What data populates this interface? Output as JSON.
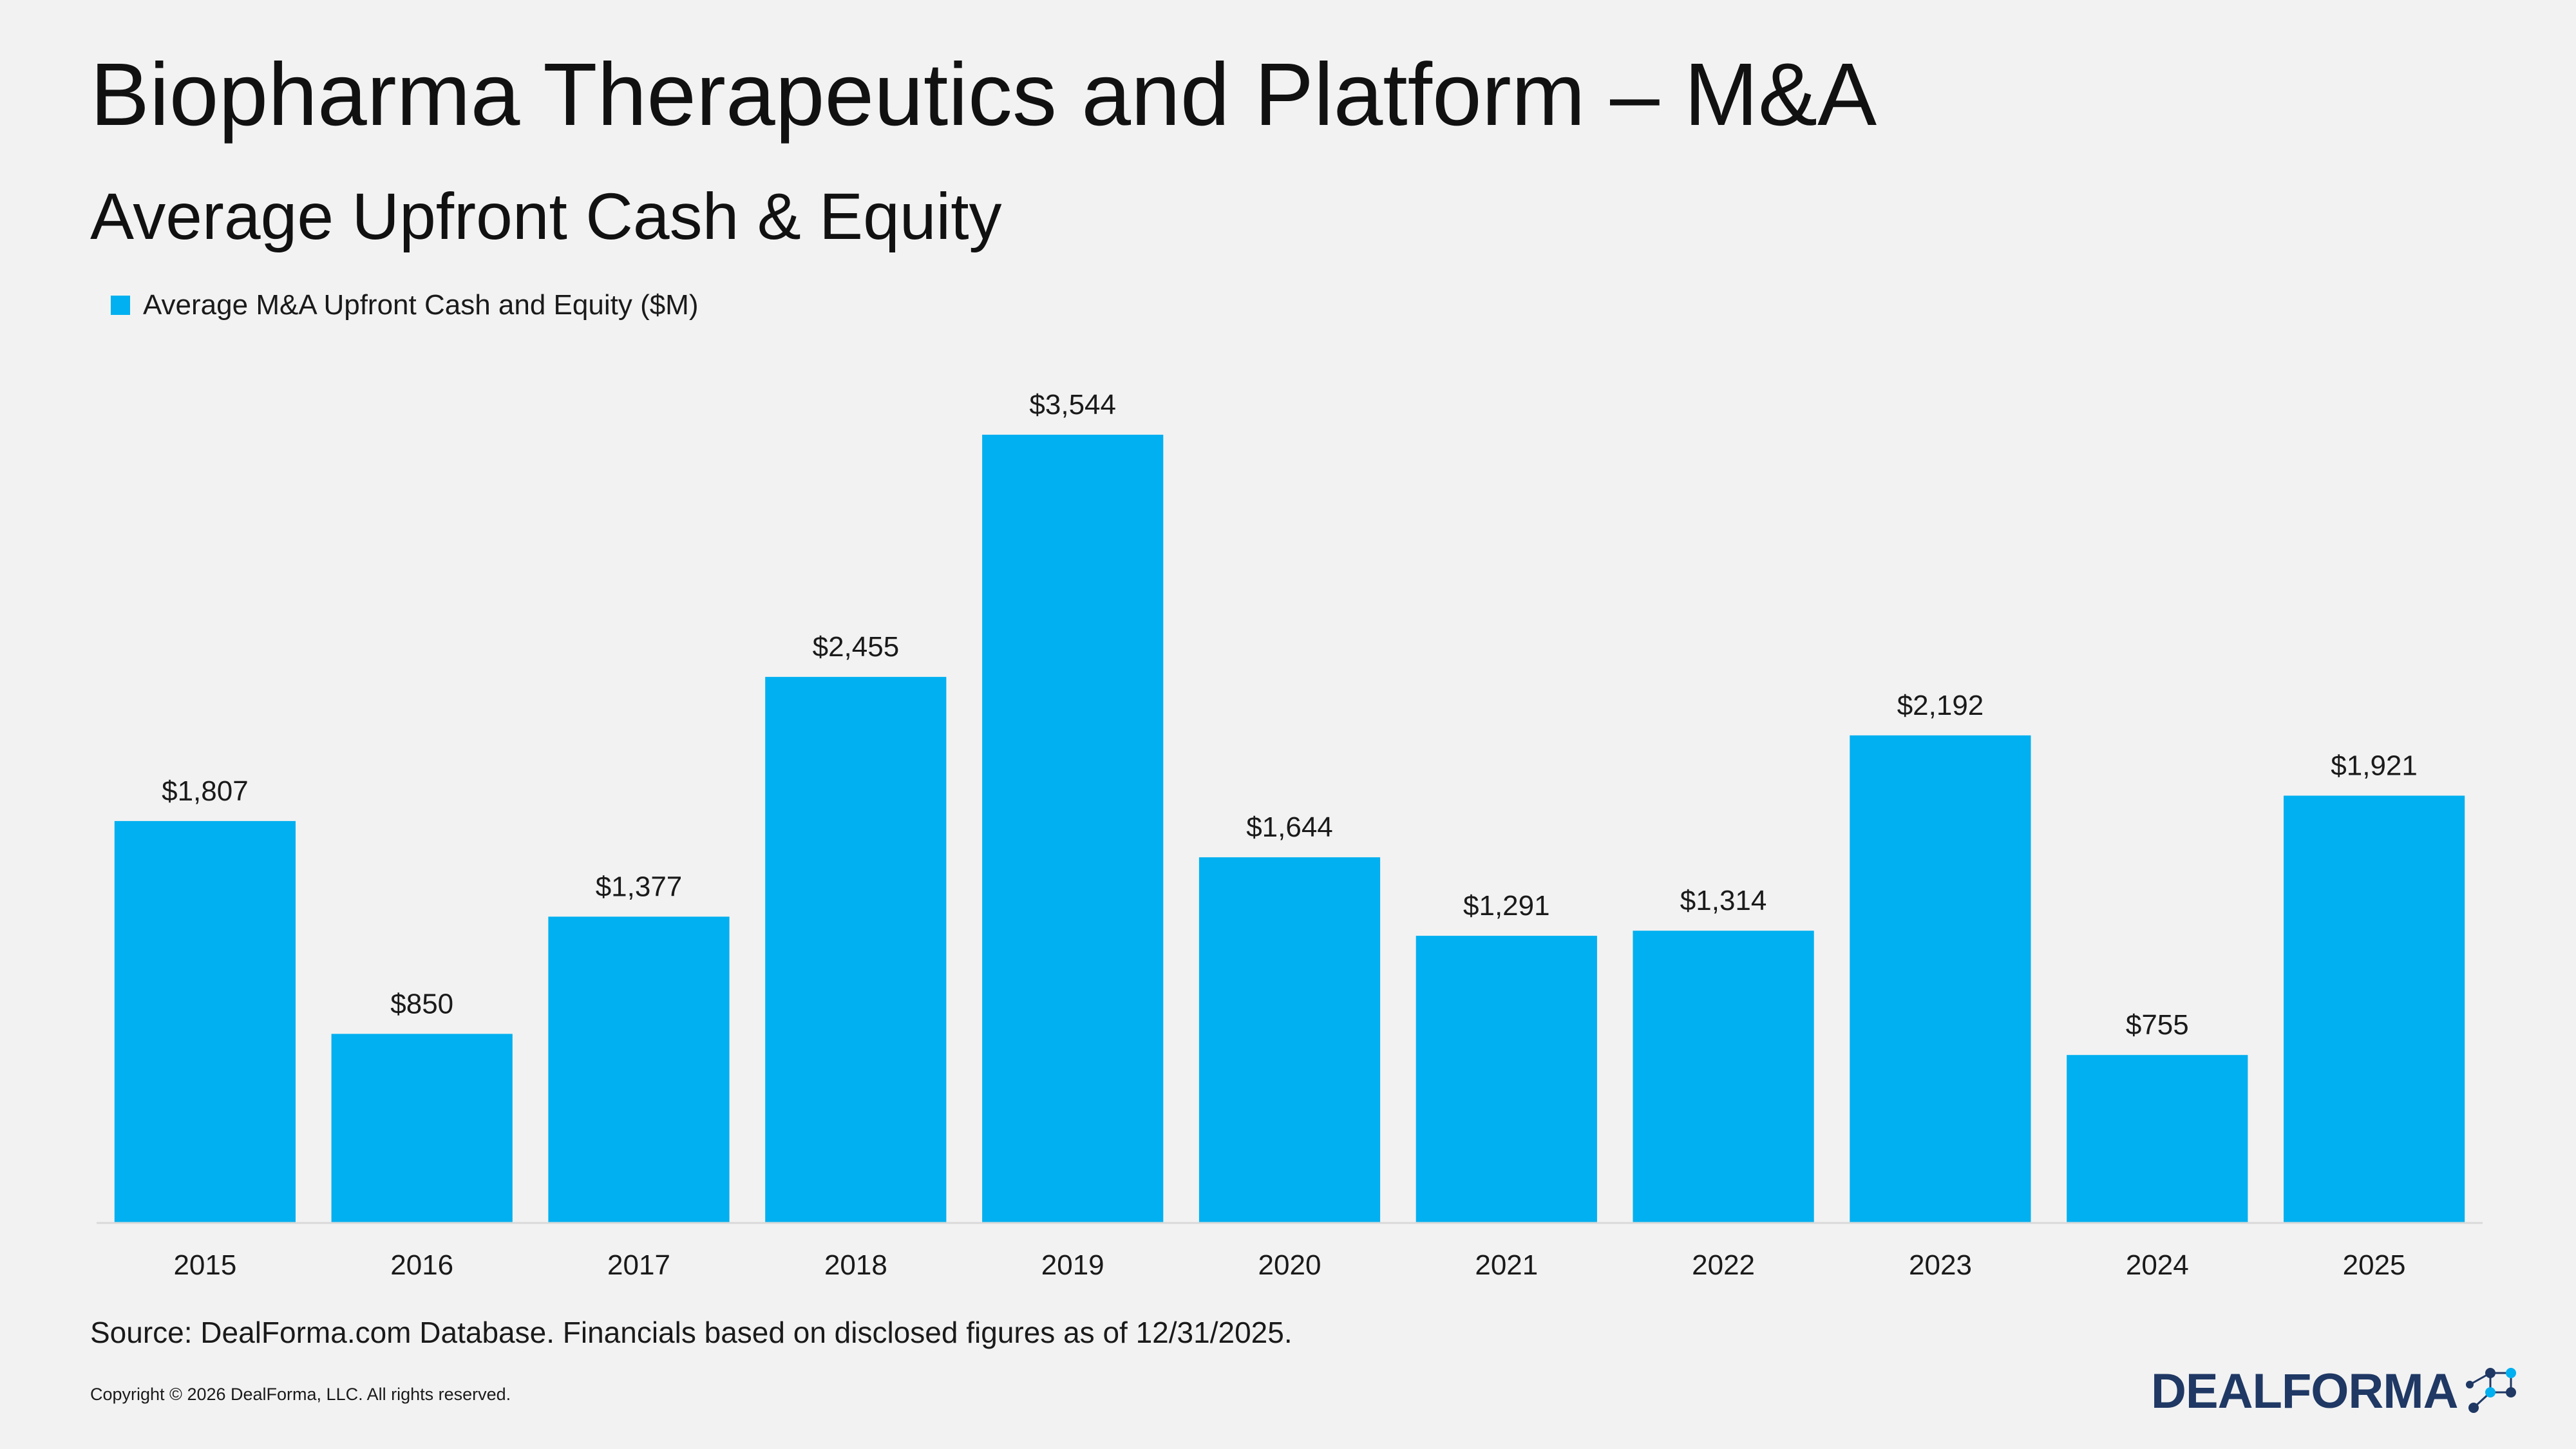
{
  "title": "Biopharma Therapeutics and Platform – M&A",
  "subtitle": "Average Upfront Cash & Equity",
  "legend": {
    "label": "Average M&A Upfront Cash and Equity ($M)"
  },
  "colors": {
    "bar": "#00b0f0",
    "axis": "#d9d9d9",
    "logo": "#1f3864"
  },
  "chart_data": {
    "type": "bar",
    "title": "Average Upfront Cash & Equity",
    "categories": [
      "2015",
      "2016",
      "2017",
      "2018",
      "2019",
      "2020",
      "2021",
      "2022",
      "2023",
      "2024",
      "2025"
    ],
    "series": [
      {
        "name": "Average M&A Upfront Cash and Equity ($M)",
        "values": [
          1807,
          850,
          1377,
          2455,
          3544,
          1644,
          1291,
          1314,
          2192,
          755,
          1921
        ],
        "labels": [
          "$1,807",
          "$850",
          "$1,377",
          "$2,455",
          "$3,544",
          "$1,644",
          "$1,291",
          "$1,314",
          "$2,192",
          "$755",
          "$1,921"
        ]
      }
    ],
    "ylim": [
      0,
      3544
    ],
    "grid": false,
    "legend_position": "top-left"
  },
  "footer": {
    "source": "Source: DealForma.com Database. Financials based on disclosed figures as of 12/31/2025.",
    "copyright": "Copyright © 2026 DealForma, LLC. All rights reserved."
  },
  "logo": {
    "text": "DEALFORMA",
    "icon": "network-nodes-icon"
  }
}
